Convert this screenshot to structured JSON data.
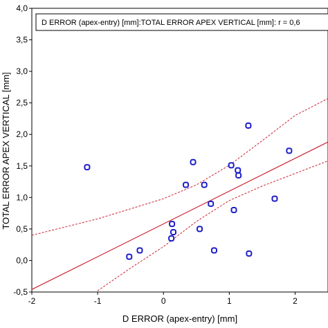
{
  "chart_data": {
    "type": "scatter",
    "title": "",
    "xlabel": "D ERROR (apex-entry) [mm]",
    "ylabel": "TOTAL ERROR APEX VERTICAL [mm]",
    "xlim": [
      -2,
      2.5
    ],
    "ylim": [
      -0.5,
      4.0
    ],
    "x_ticks": [
      "-2",
      "-1",
      "0",
      "1",
      "2"
    ],
    "x_tick_values": [
      -2,
      -1,
      0,
      1,
      2
    ],
    "y_ticks": [
      "-0,5",
      "0,0",
      "0,5",
      "1,0",
      "1,5",
      "2,0",
      "2,5",
      "3,0",
      "3,5",
      "4,0"
    ],
    "y_tick_values": [
      -0.5,
      0,
      0.5,
      1.0,
      1.5,
      2.0,
      2.5,
      3.0,
      3.5,
      4.0
    ],
    "grid": false,
    "legend_text": "D ERROR (apex-entry) [mm]:TOTAL ERROR APEX VERTICAL [mm]:   r = 0,6",
    "legend_placement": "top",
    "points": [
      {
        "x": -1.16,
        "y": 1.48
      },
      {
        "x": -0.52,
        "y": 0.06
      },
      {
        "x": -0.36,
        "y": 0.16
      },
      {
        "x": 0.12,
        "y": 0.35
      },
      {
        "x": 0.13,
        "y": 0.58
      },
      {
        "x": 0.15,
        "y": 0.45
      },
      {
        "x": 0.34,
        "y": 1.2
      },
      {
        "x": 0.45,
        "y": 1.56
      },
      {
        "x": 0.55,
        "y": 0.5
      },
      {
        "x": 0.62,
        "y": 1.2
      },
      {
        "x": 0.72,
        "y": 0.9
      },
      {
        "x": 0.77,
        "y": 0.16
      },
      {
        "x": 1.03,
        "y": 1.51
      },
      {
        "x": 1.07,
        "y": 0.8
      },
      {
        "x": 1.13,
        "y": 1.43
      },
      {
        "x": 1.14,
        "y": 1.35
      },
      {
        "x": 1.29,
        "y": 2.14
      },
      {
        "x": 1.3,
        "y": 0.11
      },
      {
        "x": 1.69,
        "y": 0.98
      },
      {
        "x": 1.91,
        "y": 1.74
      }
    ],
    "regression": {
      "intercept": 0.58,
      "slope": 0.52
    },
    "confidence_upper": [
      {
        "x": -2.0,
        "y": 0.4
      },
      {
        "x": -1.0,
        "y": 0.66
      },
      {
        "x": 0.0,
        "y": 0.98
      },
      {
        "x": 0.5,
        "y": 1.2
      },
      {
        "x": 1.0,
        "y": 1.51
      },
      {
        "x": 1.5,
        "y": 1.9
      },
      {
        "x": 2.0,
        "y": 2.3
      },
      {
        "x": 2.5,
        "y": 2.57
      }
    ],
    "confidence_lower": [
      {
        "x": -1.0,
        "y": -0.48
      },
      {
        "x": -0.5,
        "y": -0.12
      },
      {
        "x": 0.0,
        "y": 0.22
      },
      {
        "x": 0.5,
        "y": 0.62
      },
      {
        "x": 1.0,
        "y": 0.95
      },
      {
        "x": 1.5,
        "y": 1.18
      },
      {
        "x": 2.0,
        "y": 1.38
      },
      {
        "x": 2.5,
        "y": 1.58
      }
    ],
    "colors": {
      "marker": "#1c1cc8",
      "regression": "#cc2233",
      "confidence": "#cc2233",
      "axis": "#000000"
    }
  }
}
